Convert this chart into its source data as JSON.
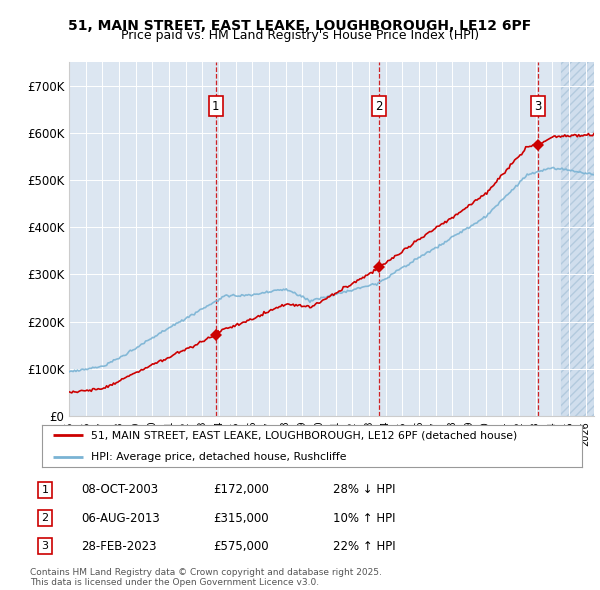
{
  "title_line1": "51, MAIN STREET, EAST LEAKE, LOUGHBOROUGH, LE12 6PF",
  "title_line2": "Price paid vs. HM Land Registry's House Price Index (HPI)",
  "background_color": "#dce6f1",
  "plot_bg_color": "#dce6f1",
  "hpi_color": "#7ab3d4",
  "price_color": "#cc0000",
  "vline_color": "#cc0000",
  "ylim": [
    0,
    750000
  ],
  "yticks": [
    0,
    100000,
    200000,
    300000,
    400000,
    500000,
    600000,
    700000
  ],
  "ytick_labels": [
    "£0",
    "£100K",
    "£200K",
    "£300K",
    "£400K",
    "£500K",
    "£600K",
    "£700K"
  ],
  "sales": [
    {
      "date": 2003.8,
      "price": 172000,
      "label": "1"
    },
    {
      "date": 2013.6,
      "price": 315000,
      "label": "2"
    },
    {
      "date": 2023.16,
      "price": 575000,
      "label": "3"
    }
  ],
  "sale_table": [
    {
      "num": "1",
      "date": "08-OCT-2003",
      "price": "£172,000",
      "hpi": "28% ↓ HPI"
    },
    {
      "num": "2",
      "date": "06-AUG-2013",
      "price": "£315,000",
      "hpi": "10% ↑ HPI"
    },
    {
      "num": "3",
      "date": "28-FEB-2023",
      "price": "£575,000",
      "hpi": "22% ↑ HPI"
    }
  ],
  "legend_line1": "51, MAIN STREET, EAST LEAKE, LOUGHBOROUGH, LE12 6PF (detached house)",
  "legend_line2": "HPI: Average price, detached house, Rushcliffe",
  "footer": "Contains HM Land Registry data © Crown copyright and database right 2025.\nThis data is licensed under the Open Government Licence v3.0.",
  "xlim_start": 1995.0,
  "xlim_end": 2026.5,
  "hatch_start": 2024.5
}
